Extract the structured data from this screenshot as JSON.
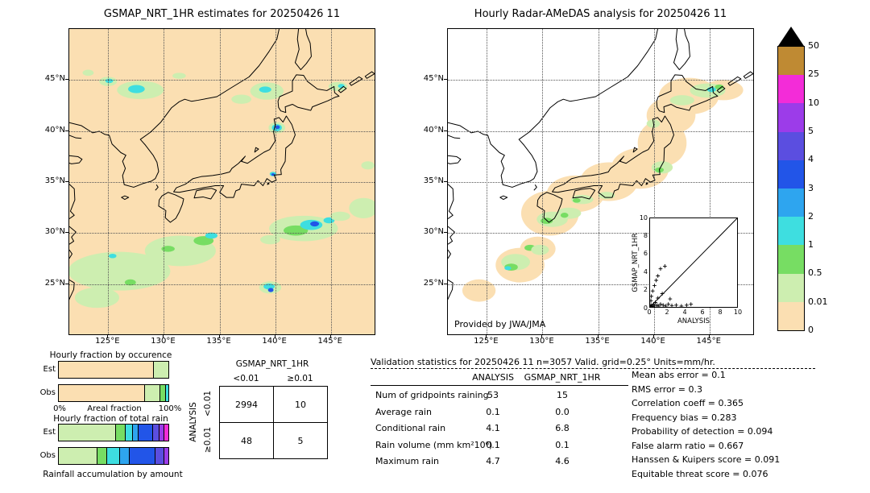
{
  "palette": {
    "peach": "#fbdfb2",
    "palegreen": "#cdeeb0",
    "green": "#77dd63",
    "cyan": "#3edee0",
    "lightblue": "#2ea5ef",
    "blue": "#2255e8",
    "blueviolet": "#5b4ee0",
    "violet": "#9c3ce9",
    "magenta": "#f32cd8",
    "gold": "#bf8a33",
    "black": "#000000",
    "white": "#ffffff"
  },
  "map_axes": {
    "lat": [
      {
        "label": "45°N",
        "value": 45
      },
      {
        "label": "40°N",
        "value": 40
      },
      {
        "label": "35°N",
        "value": 35
      },
      {
        "label": "30°N",
        "value": 30
      },
      {
        "label": "25°N",
        "value": 25
      }
    ],
    "lon": [
      {
        "label": "125°E",
        "value": 125
      },
      {
        "label": "130°E",
        "value": 130
      },
      {
        "label": "135°E",
        "value": 135
      },
      {
        "label": "140°E",
        "value": 140
      },
      {
        "label": "145°E",
        "value": 145
      }
    ]
  },
  "colorbar": {
    "tick_labels_top_to_bottom": [
      "50",
      "25",
      "10",
      "5",
      "4",
      "3",
      "2",
      "1",
      "0.5",
      "0.01",
      "0"
    ],
    "segments_top_to_bottom": [
      "gold",
      "magenta",
      "violet",
      "blueviolet",
      "blue",
      "lightblue",
      "cyan",
      "green",
      "palegreen",
      "peach"
    ],
    "overflow_color_key": "black"
  },
  "chart_data": [
    {
      "type": "map",
      "name": "gsmap_nrt_estimates",
      "title": "GSMAP_NRT_1HR estimates for 20250426 11",
      "background": "peach",
      "patches": [
        [
          "palegreen",
          127.9,
          44.0,
          2.1,
          0.9
        ],
        [
          "palegreen",
          125.0,
          44.85,
          0.8,
          0.45
        ],
        [
          "cyan",
          127.55,
          44.1,
          0.75,
          0.4
        ],
        [
          "cyan",
          125.1,
          44.9,
          0.35,
          0.22
        ],
        [
          "palegreen",
          123.2,
          45.7,
          0.5,
          0.3
        ],
        [
          "palegreen",
          131.4,
          45.4,
          0.6,
          0.3
        ],
        [
          "palegreen",
          139.3,
          43.9,
          1.5,
          0.85
        ],
        [
          "cyan",
          139.15,
          44.05,
          0.55,
          0.3
        ],
        [
          "palegreen",
          137.0,
          43.1,
          0.9,
          0.45
        ],
        [
          "palegreen",
          145.7,
          44.35,
          0.85,
          0.45
        ],
        [
          "cyan",
          146.0,
          44.4,
          0.3,
          0.2
        ],
        [
          "palegreen",
          140.2,
          40.3,
          0.75,
          0.55
        ],
        [
          "cyan",
          140.2,
          40.3,
          0.45,
          0.35
        ],
        [
          "blue",
          140.25,
          40.35,
          0.22,
          0.18
        ],
        [
          "cyan",
          139.85,
          35.75,
          0.3,
          0.22
        ],
        [
          "blue",
          139.85,
          35.7,
          0.15,
          0.12
        ],
        [
          "palegreen",
          126.0,
          26.2,
          4.6,
          1.9
        ],
        [
          "palegreen",
          131.5,
          28.2,
          3.2,
          1.5
        ],
        [
          "palegreen",
          124.0,
          23.6,
          2.0,
          1.0
        ],
        [
          "green",
          133.6,
          29.2,
          0.9,
          0.45
        ],
        [
          "cyan",
          134.3,
          29.7,
          0.55,
          0.3
        ],
        [
          "green",
          130.4,
          28.4,
          0.6,
          0.3
        ],
        [
          "cyan",
          125.4,
          27.7,
          0.35,
          0.22
        ],
        [
          "green",
          127.0,
          25.1,
          0.5,
          0.3
        ],
        [
          "palegreen",
          142.6,
          30.4,
          3.1,
          1.25
        ],
        [
          "green",
          141.9,
          30.2,
          1.1,
          0.5
        ],
        [
          "cyan",
          143.3,
          30.75,
          1.0,
          0.5
        ],
        [
          "blue",
          143.6,
          30.85,
          0.4,
          0.25
        ],
        [
          "cyan",
          144.9,
          31.2,
          0.5,
          0.3
        ],
        [
          "palegreen",
          145.9,
          31.6,
          0.9,
          0.45
        ],
        [
          "palegreen",
          139.6,
          29.3,
          0.9,
          0.45
        ],
        [
          "palegreen",
          139.6,
          24.6,
          1.0,
          0.6
        ],
        [
          "cyan",
          139.5,
          24.7,
          0.5,
          0.3
        ],
        [
          "blue",
          139.65,
          24.35,
          0.25,
          0.2
        ],
        [
          "palegreen",
          148.0,
          32.4,
          1.3,
          1.0
        ],
        [
          "palegreen",
          148.4,
          36.6,
          0.6,
          0.4
        ]
      ]
    },
    {
      "type": "map",
      "name": "radar_amedas_analysis",
      "title": "Hourly Radar-AMeDAS analysis for 20250426 11",
      "background": "white",
      "credit": "Provided by JWA/JMA",
      "coverage": [
        [
          128.0,
          26.8,
          2.2,
          1.7
        ],
        [
          124.3,
          24.3,
          1.5,
          1.1
        ],
        [
          129.6,
          28.4,
          1.6,
          1.2
        ],
        [
          130.7,
          31.9,
          2.6,
          2.2
        ],
        [
          133.0,
          33.8,
          2.6,
          1.8
        ],
        [
          136.0,
          35.0,
          2.6,
          1.9
        ],
        [
          138.8,
          36.3,
          2.6,
          2.0
        ],
        [
          140.8,
          38.8,
          2.2,
          2.3
        ],
        [
          141.6,
          41.5,
          2.2,
          1.8
        ],
        [
          143.2,
          43.4,
          2.7,
          1.8
        ],
        [
          146.3,
          44.0,
          1.8,
          1.0
        ]
      ],
      "patches": [
        [
          "palegreen",
          127.6,
          27.1,
          1.3,
          0.8
        ],
        [
          "green",
          127.2,
          26.6,
          0.6,
          0.35
        ],
        [
          "cyan",
          126.9,
          26.5,
          0.3,
          0.2
        ],
        [
          "green",
          128.9,
          28.5,
          0.5,
          0.3
        ],
        [
          "palegreen",
          129.8,
          28.3,
          0.8,
          0.5
        ],
        [
          "palegreen",
          130.9,
          31.3,
          1.4,
          0.75
        ],
        [
          "green",
          130.4,
          31.15,
          0.55,
          0.3
        ],
        [
          "palegreen",
          132.4,
          31.9,
          1.1,
          0.55
        ],
        [
          "green",
          132.0,
          31.7,
          0.35,
          0.25
        ],
        [
          "palegreen",
          133.6,
          33.25,
          1.0,
          0.45
        ],
        [
          "green",
          133.1,
          33.15,
          0.35,
          0.22
        ],
        [
          "palegreen",
          135.8,
          33.65,
          0.75,
          0.35
        ],
        [
          "palegreen",
          140.8,
          36.4,
          0.95,
          0.6
        ],
        [
          "green",
          140.55,
          36.15,
          0.4,
          0.25
        ],
        [
          "palegreen",
          142.6,
          43.0,
          1.1,
          0.5
        ],
        [
          "palegreen",
          144.9,
          43.95,
          1.6,
          0.7
        ],
        [
          "cyan",
          145.25,
          44.05,
          0.4,
          0.25
        ],
        [
          "green",
          145.95,
          44.3,
          0.4,
          0.25
        ],
        [
          "palegreen",
          140.0,
          40.7,
          0.6,
          0.4
        ]
      ],
      "inset": {
        "type": "scatter",
        "xlabel": "ANALYSIS",
        "ylabel": "GSMAP_NRT_1HR",
        "xlim": [
          0,
          10
        ],
        "ylim": [
          0,
          10
        ],
        "ticks": [
          "0",
          "2",
          "4",
          "6",
          "8",
          "10"
        ],
        "points": [
          [
            0.05,
            0.05
          ],
          [
            0.1,
            0.2
          ],
          [
            0.2,
            0.1
          ],
          [
            0.3,
            0.05
          ],
          [
            0.4,
            0.3
          ],
          [
            0.5,
            0.1
          ],
          [
            0.6,
            0.5
          ],
          [
            0.8,
            0.2
          ],
          [
            1.0,
            0.1
          ],
          [
            1.2,
            0.3
          ],
          [
            1.5,
            0.2
          ],
          [
            1.8,
            0.1
          ],
          [
            2.1,
            0.3
          ],
          [
            2.5,
            0.15
          ],
          [
            3.0,
            0.2
          ],
          [
            3.6,
            0.1
          ],
          [
            4.2,
            0.2
          ],
          [
            4.7,
            0.3
          ],
          [
            0.1,
            0.7
          ],
          [
            0.15,
            1.2
          ],
          [
            0.3,
            1.8
          ],
          [
            0.5,
            2.4
          ],
          [
            0.7,
            3.0
          ],
          [
            0.9,
            3.5
          ],
          [
            1.2,
            4.3
          ],
          [
            1.7,
            4.6
          ],
          [
            0.9,
            1.0
          ],
          [
            1.4,
            1.5
          ],
          [
            2.3,
            0.9
          ]
        ]
      }
    },
    {
      "type": "bar",
      "name": "hourly_fraction_by_occurrence",
      "title": "Hourly fraction by occurence",
      "axis_title": "Areal fraction",
      "axis_min_label": "0%",
      "axis_max_label": "100%",
      "rows": [
        {
          "label": "Est",
          "segments": [
            [
              "peach",
              87
            ],
            [
              "palegreen",
              13
            ]
          ]
        },
        {
          "label": "Obs",
          "segments": [
            [
              "peach",
              79
            ],
            [
              "palegreen",
              14
            ],
            [
              "green",
              5
            ],
            [
              "cyan",
              2
            ]
          ]
        }
      ]
    },
    {
      "type": "bar",
      "name": "hourly_fraction_of_total_rain",
      "title": "Hourly fraction of total rain",
      "caption": "Rainfall accumulation by amount",
      "rows": [
        {
          "label": "Est",
          "segments": [
            [
              "palegreen",
              52
            ],
            [
              "green",
              9
            ],
            [
              "cyan",
              7
            ],
            [
              "lightblue",
              5
            ],
            [
              "blue",
              13
            ],
            [
              "blueviolet",
              6
            ],
            [
              "violet",
              4
            ],
            [
              "magenta",
              4
            ]
          ]
        },
        {
          "label": "Obs",
          "segments": [
            [
              "palegreen",
              35
            ],
            [
              "green",
              9
            ],
            [
              "cyan",
              12
            ],
            [
              "lightblue",
              9
            ],
            [
              "blue",
              23
            ],
            [
              "blueviolet",
              8
            ],
            [
              "violet",
              4
            ]
          ]
        }
      ]
    }
  ],
  "contingency": {
    "title": "GSMAP_NRT_1HR",
    "col_headers": [
      "<0.01",
      "≥0.01"
    ],
    "row_axis": "ANALYSIS",
    "row_headers": [
      "<0.01",
      "≥0.01"
    ],
    "cells": [
      [
        "2994",
        "10"
      ],
      [
        "48",
        "5"
      ]
    ]
  },
  "validation": {
    "title": "Validation statistics for 20250426 11  n=3057 Valid. grid=0.25° Units=mm/hr.",
    "col_headers": [
      "ANALYSIS",
      "GSMAP_NRT_1HR"
    ],
    "rows": [
      {
        "label": "Num of gridpoints raining",
        "analysis": "53",
        "gsmap": "15"
      },
      {
        "label": "Average rain",
        "analysis": "0.1",
        "gsmap": "0.0"
      },
      {
        "label": "Conditional rain",
        "analysis": "4.1",
        "gsmap": "6.8"
      },
      {
        "label": "Rain volume (mm km²10⁶)",
        "analysis": "0.1",
        "gsmap": "0.1"
      },
      {
        "label": "Maximum rain",
        "analysis": "4.7",
        "gsmap": "4.6"
      }
    ],
    "stats": [
      {
        "label": "Mean abs error",
        "value": "0.1"
      },
      {
        "label": "RMS error",
        "value": "0.3"
      },
      {
        "label": "Correlation coeff",
        "value": "0.365"
      },
      {
        "label": "Frequency bias",
        "value": "0.283"
      },
      {
        "label": "Probability of detection",
        "value": "0.094"
      },
      {
        "label": "False alarm ratio",
        "value": "0.667"
      },
      {
        "label": "Hanssen & Kuipers score",
        "value": "0.091"
      },
      {
        "label": "Equitable threat score",
        "value": "0.076"
      }
    ]
  }
}
